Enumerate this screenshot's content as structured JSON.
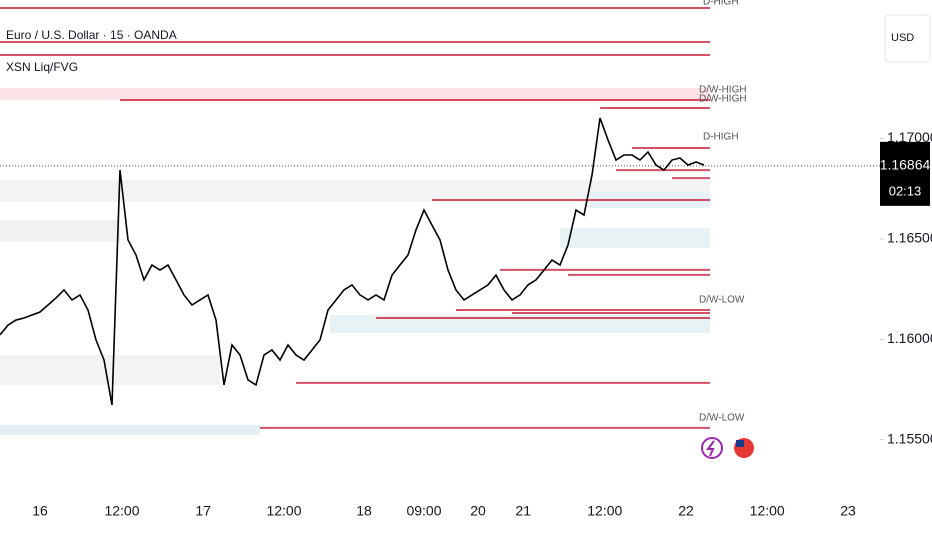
{
  "chart_data": {
    "type": "line",
    "title": "Euro / U.S. Dollar · 15 · OANDA",
    "indicator": "XSN Liq/FVG",
    "currency": "USD",
    "color": "#000000",
    "values": [
      1.16022,
      1.16071,
      1.16096,
      1.16106,
      1.16121,
      1.16136,
      1.16171,
      1.16206,
      1.16246,
      1.16196,
      1.16221,
      1.16146,
      1.15997,
      1.15897,
      1.15673,
      1.16843,
      1.16495,
      1.1642,
      1.16296,
      1.1637,
      1.16345,
      1.1637,
      1.16296,
      1.16221,
      1.16171,
      1.16196,
      1.16221,
      1.16096,
      1.15773,
      1.15972,
      1.15922,
      1.15798,
      1.15773,
      1.15922,
      1.15947,
      1.15897,
      1.15972,
      1.15922,
      1.15897,
      1.15947,
      1.15997,
      1.16146,
      1.16196,
      1.16246,
      1.16271,
      1.16221,
      1.16196,
      1.16221,
      1.16196,
      1.1632,
      1.1637,
      1.1642,
      1.16545,
      1.16644,
      1.16569,
      1.16495,
      1.16345,
      1.16246,
      1.16196,
      1.16221,
      1.16246,
      1.16271,
      1.1632,
      1.16246,
      1.16196,
      1.16221,
      1.16271,
      1.16296,
      1.16345,
      1.16395,
      1.1637,
      1.1647,
      1.16644,
      1.16619,
      1.16818,
      1.17102,
      1.16993,
      1.16893,
      1.16918,
      1.16918,
      1.16893,
      1.16933,
      1.16868,
      1.16843,
      1.16893,
      1.16903,
      1.16868,
      1.16883,
      1.16868
    ],
    "xlim": [
      0,
      110
    ],
    "xticks": [
      {
        "value": 5,
        "label": "16"
      },
      {
        "value": 15.25,
        "label": "12:00"
      },
      {
        "value": 25.4,
        "label": "17"
      },
      {
        "value": 35.5,
        "label": "12:00"
      },
      {
        "value": 45.5,
        "label": "18"
      },
      {
        "value": 53,
        "label": "09:00"
      },
      {
        "value": 59.75,
        "label": "20"
      },
      {
        "value": 65.4,
        "label": "21"
      },
      {
        "value": 75.6,
        "label": "12:00"
      },
      {
        "value": 85.75,
        "label": "22"
      },
      {
        "value": 95.9,
        "label": "12:00"
      },
      {
        "value": 106,
        "label": "23"
      }
    ],
    "ylim": [
      1.1515,
      1.1769
    ],
    "yticks": [
      {
        "value": 1.17,
        "label": "1.17000"
      },
      {
        "value": 1.165,
        "label": "1.16500"
      },
      {
        "value": 1.16,
        "label": "1.16000"
      },
      {
        "value": 1.155,
        "label": "1.15500"
      }
    ],
    "last_price": 1.16864,
    "countdown": "02:13",
    "level_color": "#d0304a",
    "levels": [
      {
        "value": 1.1765,
        "start": 0
      },
      {
        "value": 1.17481,
        "start": 0
      },
      {
        "value": 1.17416,
        "start": 0
      },
      {
        "value": 1.17192,
        "start": 15
      },
      {
        "value": 1.17152,
        "start": 75
      },
      {
        "value": 1.16953,
        "start": 79
      },
      {
        "value": 1.16843,
        "start": 77
      },
      {
        "value": 1.16803,
        "start": 84
      },
      {
        "value": 1.16694,
        "start": 54
      },
      {
        "value": 1.16346,
        "start": 62.5
      },
      {
        "value": 1.16321,
        "start": 71
      },
      {
        "value": 1.16146,
        "start": 57
      },
      {
        "value": 1.16131,
        "start": 64
      },
      {
        "value": 1.16106,
        "start": 47
      },
      {
        "value": 1.15783,
        "start": 37
      },
      {
        "value": 1.15559,
        "start": 32.5
      }
    ],
    "annotations": [
      "D-HIGH",
      "D/W-HIGH",
      "D/W-HIGH",
      "D-HIGH",
      "D/W-LOW",
      "D/W-LOW"
    ]
  }
}
